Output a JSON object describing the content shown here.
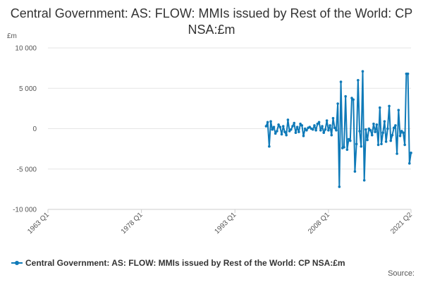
{
  "colors": {
    "series": "#0f7ab8"
  },
  "chart_data": {
    "type": "line",
    "title": "Central Government: AS: FLOW: MMIs issued by Rest of the World: CP NSA:£m",
    "ylabel": "£m",
    "xlabel": "",
    "ylim": [
      -10000,
      10000
    ],
    "yticks": [
      10000,
      5000,
      0,
      -5000,
      -10000
    ],
    "ytick_labels": [
      "10 000",
      "5 000",
      "0",
      "-5 000",
      "-10 000"
    ],
    "xlim": [
      "1963 Q1",
      "2021 Q2"
    ],
    "xticks": [
      "1963 Q1",
      "1978 Q1",
      "1993 Q1",
      "2008 Q1",
      "2021 Q2"
    ],
    "grid": true,
    "legend": "bottom",
    "source": "Source:",
    "series": [
      {
        "name": "Central Government: AS: FLOW: MMIs issued by Rest of the World: CP NSA:£m",
        "x": [
          "1998 Q1",
          "1998 Q2",
          "1998 Q3",
          "1998 Q4",
          "1999 Q1",
          "1999 Q2",
          "1999 Q3",
          "1999 Q4",
          "2000 Q1",
          "2000 Q2",
          "2000 Q3",
          "2000 Q4",
          "2001 Q1",
          "2001 Q2",
          "2001 Q3",
          "2001 Q4",
          "2002 Q1",
          "2002 Q2",
          "2002 Q3",
          "2002 Q4",
          "2003 Q1",
          "2003 Q2",
          "2003 Q3",
          "2003 Q4",
          "2004 Q1",
          "2004 Q2",
          "2004 Q3",
          "2004 Q4",
          "2005 Q1",
          "2005 Q2",
          "2005 Q3",
          "2005 Q4",
          "2006 Q1",
          "2006 Q2",
          "2006 Q3",
          "2006 Q4",
          "2007 Q1",
          "2007 Q2",
          "2007 Q3",
          "2007 Q4",
          "2008 Q1",
          "2008 Q2",
          "2008 Q3",
          "2008 Q4",
          "2009 Q1",
          "2009 Q2",
          "2009 Q3",
          "2009 Q4",
          "2010 Q1",
          "2010 Q2",
          "2010 Q3",
          "2010 Q4",
          "2011 Q1",
          "2011 Q2",
          "2011 Q3",
          "2011 Q4",
          "2012 Q1",
          "2012 Q2",
          "2012 Q3",
          "2012 Q4",
          "2013 Q1",
          "2013 Q2",
          "2013 Q3",
          "2013 Q4",
          "2014 Q1",
          "2014 Q2",
          "2014 Q3",
          "2014 Q4",
          "2015 Q1",
          "2015 Q2",
          "2015 Q3",
          "2015 Q4",
          "2016 Q1",
          "2016 Q2",
          "2016 Q3",
          "2016 Q4",
          "2017 Q1",
          "2017 Q2",
          "2017 Q3",
          "2017 Q4",
          "2018 Q1",
          "2018 Q2",
          "2018 Q3",
          "2018 Q4",
          "2019 Q1",
          "2019 Q2",
          "2019 Q3",
          "2019 Q4",
          "2020 Q1",
          "2020 Q2",
          "2020 Q3",
          "2020 Q4",
          "2021 Q1",
          "2021 Q2"
        ],
        "values": [
          300,
          800,
          -2200,
          900,
          -100,
          200,
          -600,
          -300,
          500,
          200,
          -700,
          300,
          -400,
          -800,
          1100,
          -300,
          -100,
          300,
          700,
          -500,
          200,
          -400,
          600,
          400,
          -900,
          0,
          -200,
          100,
          200,
          0,
          -100,
          400,
          -200,
          600,
          800,
          -200,
          300,
          -500,
          -100,
          1000,
          -200,
          400,
          -800,
          1300,
          100,
          -200,
          3100,
          -7200,
          5800,
          -2400,
          -2300,
          4000,
          -2600,
          -1300,
          -1500,
          3800,
          3600,
          -5300,
          -1900,
          6000,
          -300,
          -2200,
          7100,
          -6400,
          -100,
          -1400,
          0,
          -200,
          -800,
          600,
          -400,
          500,
          -2000,
          2600,
          -1900,
          -500,
          900,
          -1600,
          0,
          2800,
          -1500,
          -800,
          100,
          400,
          -3100,
          2300,
          -900,
          -300,
          -500,
          -2000,
          6800,
          6800,
          -4300,
          -3000
        ]
      }
    ]
  }
}
